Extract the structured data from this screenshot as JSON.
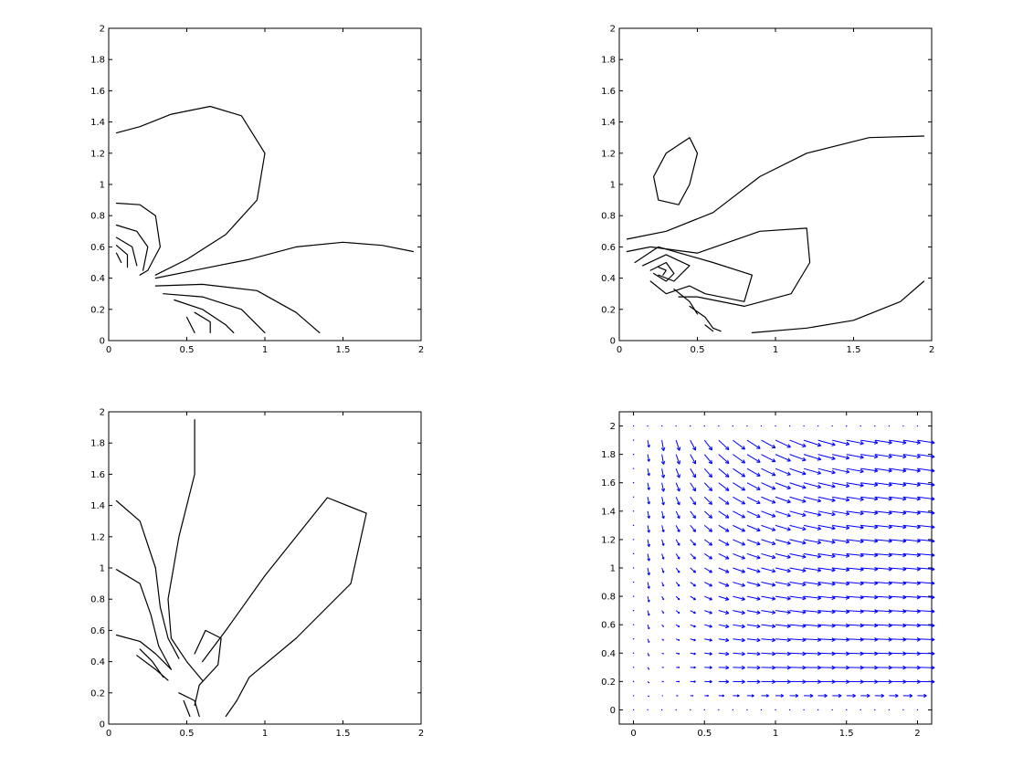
{
  "chart_data": [
    {
      "type": "contour",
      "xlim": [
        0,
        2
      ],
      "ylim": [
        0,
        2
      ],
      "xticks": [
        "0",
        "0.5",
        "1",
        "1.5",
        "2"
      ],
      "yticks": [
        "0",
        "0.2",
        "0.4",
        "0.6",
        "0.8",
        "1",
        "1.2",
        "1.4",
        "1.6",
        "1.8",
        "2"
      ],
      "lines": [
        [
          [
            0.05,
            1.33
          ],
          [
            0.2,
            1.37
          ],
          [
            0.4,
            1.45
          ],
          [
            0.65,
            1.5
          ],
          [
            0.85,
            1.44
          ],
          [
            1.0,
            1.2
          ],
          [
            0.95,
            0.9
          ],
          [
            0.75,
            0.68
          ],
          [
            0.5,
            0.52
          ],
          [
            0.3,
            0.42
          ]
        ],
        [
          [
            0.3,
            0.4
          ],
          [
            0.6,
            0.46
          ],
          [
            0.9,
            0.52
          ],
          [
            1.2,
            0.6
          ],
          [
            1.5,
            0.63
          ],
          [
            1.75,
            0.61
          ],
          [
            1.95,
            0.57
          ]
        ],
        [
          [
            0.05,
            0.88
          ],
          [
            0.2,
            0.87
          ],
          [
            0.3,
            0.8
          ],
          [
            0.33,
            0.6
          ],
          [
            0.25,
            0.45
          ],
          [
            0.2,
            0.42
          ]
        ],
        [
          [
            0.05,
            0.74
          ],
          [
            0.18,
            0.7
          ],
          [
            0.25,
            0.6
          ],
          [
            0.22,
            0.45
          ]
        ],
        [
          [
            0.05,
            0.66
          ],
          [
            0.15,
            0.6
          ],
          [
            0.18,
            0.48
          ]
        ],
        [
          [
            0.05,
            0.61
          ],
          [
            0.12,
            0.55
          ],
          [
            0.12,
            0.47
          ]
        ],
        [
          [
            0.05,
            0.56
          ],
          [
            0.08,
            0.5
          ]
        ],
        [
          [
            0.3,
            0.35
          ],
          [
            0.6,
            0.36
          ],
          [
            0.95,
            0.32
          ],
          [
            1.2,
            0.18
          ],
          [
            1.35,
            0.05
          ]
        ],
        [
          [
            0.35,
            0.3
          ],
          [
            0.6,
            0.28
          ],
          [
            0.85,
            0.2
          ],
          [
            1.0,
            0.05
          ]
        ],
        [
          [
            0.42,
            0.26
          ],
          [
            0.6,
            0.2
          ],
          [
            0.75,
            0.1
          ],
          [
            0.8,
            0.05
          ]
        ],
        [
          [
            0.55,
            0.18
          ],
          [
            0.65,
            0.12
          ],
          [
            0.65,
            0.05
          ]
        ],
        [
          [
            0.5,
            0.15
          ],
          [
            0.55,
            0.05
          ]
        ]
      ]
    },
    {
      "type": "contour",
      "xlim": [
        0,
        2
      ],
      "ylim": [
        0,
        2
      ],
      "xticks": [
        "0",
        "0.5",
        "1",
        "1.5",
        "2"
      ],
      "yticks": [
        "0",
        "0.2",
        "0.4",
        "0.6",
        "0.8",
        "1",
        "1.2",
        "1.4",
        "1.6",
        "1.8",
        "2"
      ],
      "lines": [
        [
          [
            0.25,
            0.9
          ],
          [
            0.22,
            1.05
          ],
          [
            0.3,
            1.2
          ],
          [
            0.45,
            1.3
          ],
          [
            0.5,
            1.2
          ],
          [
            0.45,
            1.0
          ],
          [
            0.38,
            0.87
          ],
          [
            0.25,
            0.9
          ]
        ],
        [
          [
            0.05,
            0.65
          ],
          [
            0.3,
            0.7
          ],
          [
            0.6,
            0.82
          ],
          [
            0.9,
            1.05
          ],
          [
            1.2,
            1.2
          ],
          [
            1.6,
            1.3
          ],
          [
            1.95,
            1.31
          ]
        ],
        [
          [
            0.05,
            0.57
          ],
          [
            0.2,
            0.6
          ],
          [
            0.5,
            0.56
          ],
          [
            0.9,
            0.7
          ],
          [
            1.2,
            0.72
          ],
          [
            1.22,
            0.5
          ],
          [
            1.1,
            0.3
          ],
          [
            0.8,
            0.22
          ],
          [
            0.5,
            0.28
          ],
          [
            0.38,
            0.28
          ]
        ],
        [
          [
            0.1,
            0.5
          ],
          [
            0.25,
            0.6
          ],
          [
            0.6,
            0.5
          ],
          [
            0.85,
            0.42
          ],
          [
            0.8,
            0.25
          ],
          [
            0.55,
            0.3
          ],
          [
            0.45,
            0.35
          ],
          [
            0.3,
            0.3
          ],
          [
            0.2,
            0.38
          ]
        ],
        [
          [
            0.15,
            0.48
          ],
          [
            0.3,
            0.55
          ],
          [
            0.45,
            0.48
          ],
          [
            0.35,
            0.38
          ],
          [
            0.25,
            0.42
          ]
        ],
        [
          [
            0.2,
            0.45
          ],
          [
            0.3,
            0.5
          ],
          [
            0.35,
            0.43
          ],
          [
            0.3,
            0.38
          ],
          [
            0.22,
            0.43
          ]
        ],
        [
          [
            0.25,
            0.47
          ],
          [
            0.3,
            0.45
          ],
          [
            0.28,
            0.42
          ]
        ],
        [
          [
            0.35,
            0.33
          ],
          [
            0.45,
            0.25
          ],
          [
            0.5,
            0.17
          ]
        ],
        [
          [
            0.45,
            0.22
          ],
          [
            0.55,
            0.15
          ],
          [
            0.6,
            0.08
          ],
          [
            0.65,
            0.06
          ]
        ],
        [
          [
            0.55,
            0.1
          ],
          [
            0.6,
            0.06
          ]
        ],
        [
          [
            0.85,
            0.05
          ],
          [
            1.2,
            0.08
          ],
          [
            1.5,
            0.13
          ],
          [
            1.8,
            0.25
          ],
          [
            1.95,
            0.38
          ]
        ]
      ]
    },
    {
      "type": "contour",
      "xlim": [
        0,
        2
      ],
      "ylim": [
        0,
        2
      ],
      "xticks": [
        "0",
        "0.5",
        "1",
        "1.5",
        "2"
      ],
      "yticks": [
        "0",
        "0.2",
        "0.4",
        "0.6",
        "0.8",
        "1",
        "1.2",
        "1.4",
        "1.6",
        "1.8",
        "2"
      ],
      "lines": [
        [
          [
            0.55,
            1.95
          ],
          [
            0.55,
            1.6
          ],
          [
            0.45,
            1.2
          ],
          [
            0.38,
            0.8
          ],
          [
            0.4,
            0.55
          ],
          [
            0.5,
            0.4
          ],
          [
            0.6,
            0.28
          ]
        ],
        [
          [
            0.05,
            1.43
          ],
          [
            0.2,
            1.3
          ],
          [
            0.3,
            1.0
          ],
          [
            0.33,
            0.75
          ],
          [
            0.38,
            0.55
          ],
          [
            0.45,
            0.42
          ]
        ],
        [
          [
            0.05,
            0.99
          ],
          [
            0.2,
            0.9
          ],
          [
            0.27,
            0.7
          ],
          [
            0.32,
            0.5
          ],
          [
            0.4,
            0.35
          ]
        ],
        [
          [
            0.05,
            0.57
          ],
          [
            0.2,
            0.53
          ],
          [
            0.3,
            0.45
          ],
          [
            0.4,
            0.35
          ]
        ],
        [
          [
            0.2,
            0.48
          ],
          [
            0.28,
            0.4
          ],
          [
            0.35,
            0.3
          ]
        ],
        [
          [
            0.18,
            0.44
          ],
          [
            0.3,
            0.35
          ],
          [
            0.38,
            0.28
          ]
        ],
        [
          [
            0.6,
            0.4
          ],
          [
            0.75,
            0.6
          ],
          [
            1.0,
            0.95
          ],
          [
            1.4,
            1.45
          ],
          [
            1.65,
            1.35
          ],
          [
            1.55,
            0.9
          ],
          [
            1.2,
            0.55
          ],
          [
            0.9,
            0.3
          ],
          [
            0.82,
            0.15
          ],
          [
            0.75,
            0.05
          ]
        ],
        [
          [
            0.55,
            0.45
          ],
          [
            0.62,
            0.6
          ],
          [
            0.72,
            0.55
          ],
          [
            0.7,
            0.38
          ],
          [
            0.58,
            0.25
          ],
          [
            0.55,
            0.12
          ]
        ],
        [
          [
            0.45,
            0.2
          ],
          [
            0.55,
            0.15
          ],
          [
            0.58,
            0.05
          ]
        ],
        [
          [
            0.48,
            0.15
          ],
          [
            0.52,
            0.05
          ]
        ]
      ]
    },
    {
      "type": "quiver",
      "xlim": [
        -0.1,
        2.1
      ],
      "ylim": [
        -0.1,
        2.1
      ],
      "xticks": [
        "0",
        "0.5",
        "1",
        "1.5",
        "2"
      ],
      "yticks": [
        "0",
        "0.2",
        "0.4",
        "0.6",
        "0.8",
        "1",
        "1.2",
        "1.4",
        "1.6",
        "1.8",
        "2"
      ],
      "grid_step": 0.1,
      "color": "#0000ff"
    }
  ]
}
